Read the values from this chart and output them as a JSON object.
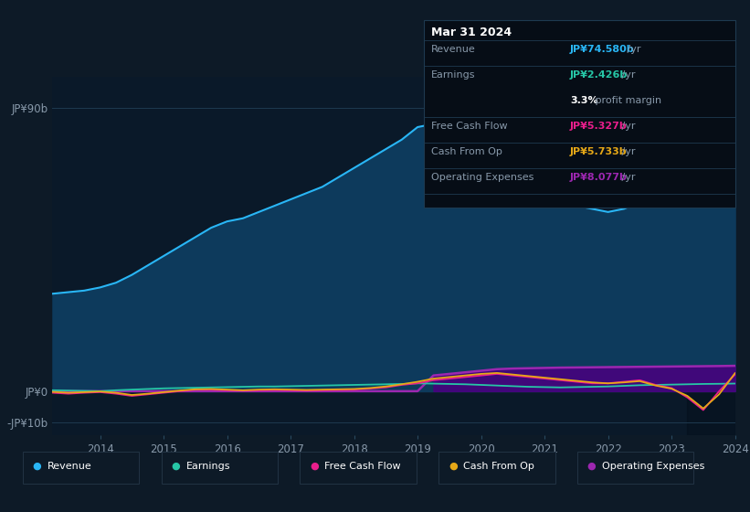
{
  "background_color": "#0d1a27",
  "plot_bg_color": "#0a1929",
  "years": [
    2013.25,
    2013.5,
    2013.75,
    2014,
    2014.25,
    2014.5,
    2014.75,
    2015,
    2015.25,
    2015.5,
    2015.75,
    2016,
    2016.25,
    2016.5,
    2016.75,
    2017,
    2017.25,
    2017.5,
    2017.75,
    2018,
    2018.25,
    2018.5,
    2018.75,
    2019,
    2019.25,
    2019.5,
    2019.75,
    2020,
    2020.25,
    2020.5,
    2020.75,
    2021,
    2021.25,
    2021.5,
    2021.75,
    2022,
    2022.25,
    2022.5,
    2022.75,
    2023,
    2023.25,
    2023.5,
    2023.75,
    2024
  ],
  "revenue": [
    31,
    31.5,
    32,
    33,
    34.5,
    37,
    40,
    43,
    46,
    49,
    52,
    54,
    55,
    57,
    59,
    61,
    63,
    65,
    68,
    71,
    74,
    77,
    80,
    84,
    85,
    83,
    81,
    79,
    75,
    71,
    67,
    64,
    61,
    59,
    58,
    57,
    58,
    60,
    62,
    64,
    67,
    70,
    72.5,
    74.58
  ],
  "earnings": [
    0.3,
    0.2,
    0.1,
    0.0,
    0.3,
    0.5,
    0.7,
    0.9,
    1.0,
    1.1,
    1.2,
    1.3,
    1.4,
    1.5,
    1.5,
    1.6,
    1.7,
    1.8,
    1.9,
    2.0,
    2.1,
    2.2,
    2.3,
    2.5,
    2.4,
    2.3,
    2.2,
    2.0,
    1.8,
    1.6,
    1.4,
    1.3,
    1.2,
    1.3,
    1.4,
    1.5,
    1.7,
    1.9,
    2.0,
    2.1,
    2.2,
    2.3,
    2.35,
    2.426
  ],
  "free_cash_flow": [
    -0.5,
    -0.8,
    -0.5,
    -0.3,
    -0.8,
    -1.5,
    -1.0,
    -0.5,
    0.0,
    0.5,
    0.5,
    0.3,
    0.2,
    0.3,
    0.4,
    0.3,
    0.2,
    0.3,
    0.4,
    0.5,
    0.8,
    1.2,
    2.0,
    2.5,
    3.5,
    4.0,
    4.5,
    5.0,
    5.5,
    5.0,
    4.5,
    4.0,
    3.5,
    3.0,
    2.5,
    2.5,
    3.0,
    3.5,
    2.0,
    1.0,
    -2.0,
    -6.0,
    0.0,
    5.327
  ],
  "cash_from_op": [
    -0.2,
    -0.5,
    -0.3,
    -0.1,
    -0.5,
    -1.2,
    -0.8,
    -0.3,
    0.2,
    0.6,
    0.7,
    0.5,
    0.3,
    0.5,
    0.6,
    0.5,
    0.4,
    0.5,
    0.6,
    0.7,
    1.0,
    1.5,
    2.2,
    3.0,
    4.0,
    4.5,
    5.0,
    5.5,
    5.8,
    5.3,
    4.8,
    4.3,
    3.8,
    3.3,
    2.8,
    2.5,
    2.8,
    3.2,
    1.8,
    0.8,
    -1.5,
    -5.5,
    -1.0,
    5.733
  ],
  "operating_expenses": [
    0,
    0,
    0,
    0,
    0,
    0,
    0,
    0,
    0,
    0,
    0,
    0,
    0,
    0,
    0,
    0,
    0,
    0,
    0,
    0,
    0,
    0,
    0,
    0,
    5.0,
    5.5,
    6.0,
    6.5,
    7.0,
    7.2,
    7.3,
    7.4,
    7.5,
    7.55,
    7.6,
    7.65,
    7.7,
    7.75,
    7.8,
    7.85,
    7.9,
    7.95,
    8.0,
    8.077
  ],
  "revenue_color": "#29b6f6",
  "earnings_color": "#26c6a6",
  "free_cash_flow_color": "#e91e8c",
  "cash_from_op_color": "#e6a817",
  "operating_expenses_color": "#9c27b0",
  "revenue_fill_color": "#0d3a5c",
  "operating_expenses_fill_color": "#4a0080",
  "ylim_min": -14,
  "ylim_max": 100,
  "ytick_90_label": "JP¥90b",
  "ytick_0_label": "JP¥0",
  "ytick_neg10_label": "-JP¥10b",
  "xticks": [
    2014,
    2015,
    2016,
    2017,
    2018,
    2019,
    2020,
    2021,
    2022,
    2023,
    2024
  ],
  "forecast_start": 2023.25,
  "tooltip": {
    "date": "Mar 31 2024",
    "rows": [
      {
        "label": "Revenue",
        "val": "JP¥74.580b",
        "unit": " /yr",
        "val_color": "#29b6f6",
        "label_color": "#8899aa",
        "separator_above": true
      },
      {
        "label": "Earnings",
        "val": "JP¥2.426b",
        "unit": " /yr",
        "val_color": "#26c6a6",
        "label_color": "#8899aa",
        "separator_above": true
      },
      {
        "label": "",
        "val": "3.3%",
        "unit": " profit margin",
        "val_color": "#ffffff",
        "label_color": "#8899aa",
        "separator_above": false
      },
      {
        "label": "Free Cash Flow",
        "val": "JP¥5.327b",
        "unit": " /yr",
        "val_color": "#e91e8c",
        "label_color": "#8899aa",
        "separator_above": true
      },
      {
        "label": "Cash From Op",
        "val": "JP¥5.733b",
        "unit": " /yr",
        "val_color": "#e6a817",
        "label_color": "#8899aa",
        "separator_above": true
      },
      {
        "label": "Operating Expenses",
        "val": "JP¥8.077b",
        "unit": " /yr",
        "val_color": "#9c27b0",
        "label_color": "#8899aa",
        "separator_above": true
      }
    ]
  },
  "legend_items": [
    {
      "label": "Revenue",
      "color": "#29b6f6"
    },
    {
      "label": "Earnings",
      "color": "#26c6a6"
    },
    {
      "label": "Free Cash Flow",
      "color": "#e91e8c"
    },
    {
      "label": "Cash From Op",
      "color": "#e6a817"
    },
    {
      "label": "Operating Expenses",
      "color": "#9c27b0"
    }
  ]
}
